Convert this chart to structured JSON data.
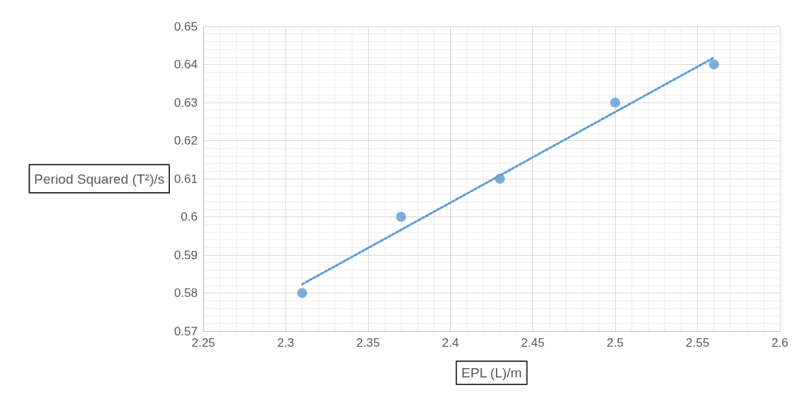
{
  "chart_data": {
    "type": "scatter",
    "xlabel": "EPL (L)/m",
    "ylabel": "Period Squared (T²)/s",
    "x": [
      2.31,
      2.37,
      2.43,
      2.5,
      2.56
    ],
    "series": [
      {
        "color": "#5b9bd5",
        "marker": "circle",
        "values": [
          0.58,
          0.6,
          0.61,
          0.63,
          0.64
        ]
      },
      {
        "type": "line",
        "color": "#5b9bd5",
        "marker": "none",
        "line_style": "dotted",
        "x": [
          2.31,
          2.56
        ],
        "values": [
          0.5823,
          0.6418
        ]
      }
    ],
    "xlim": [
      2.25,
      2.6
    ],
    "xticks": [
      2.25,
      2.3,
      2.35,
      2.4,
      2.45,
      2.5,
      2.55,
      2.6
    ],
    "ylim": [
      0.57,
      0.65
    ],
    "yticks": [
      0.57,
      0.58,
      0.59,
      0.6,
      0.61,
      0.62,
      0.63,
      0.64,
      0.65
    ],
    "grid": true
  }
}
